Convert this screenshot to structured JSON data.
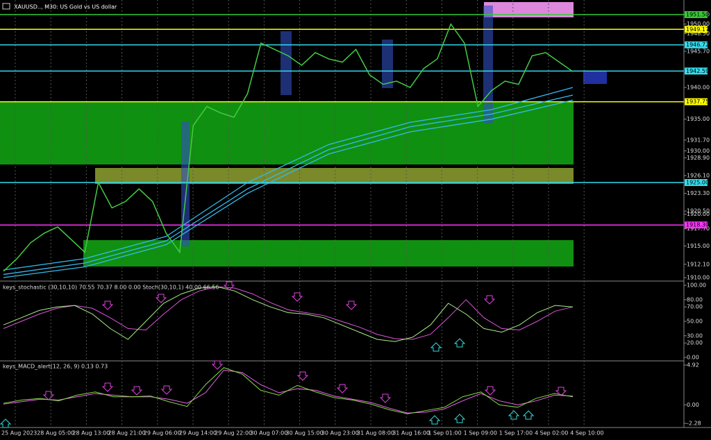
{
  "header": {
    "title": "XAUUSD.., M30:  US Gold vs US dollar"
  },
  "price_axis": {
    "ticks": [
      {
        "value": 1951.5,
        "label": "1951.50"
      },
      {
        "value": 1950.0,
        "label": "1950.00"
      },
      {
        "value": 1948.5,
        "label": "1948.50"
      },
      {
        "value": 1945.7,
        "label": "1945.70"
      },
      {
        "value": 1940.0,
        "label": "1940.00"
      },
      {
        "value": 1935.0,
        "label": "1935.00"
      },
      {
        "value": 1931.7,
        "label": "1931.70"
      },
      {
        "value": 1930.0,
        "label": "1930.00"
      },
      {
        "value": 1928.9,
        "label": "1928.90"
      },
      {
        "value": 1926.1,
        "label": "1926.10"
      },
      {
        "value": 1923.3,
        "label": "1923.30"
      },
      {
        "value": 1920.5,
        "label": "1920.50"
      },
      {
        "value": 1920.0,
        "label": "1920.00"
      },
      {
        "value": 1917.7,
        "label": "1917.70"
      },
      {
        "value": 1915.0,
        "label": "1915.00"
      },
      {
        "value": 1912.1,
        "label": "1912.10"
      },
      {
        "value": 1910.0,
        "label": "1910.00"
      }
    ]
  },
  "levels": [
    {
      "value": 1951.5,
      "label": "1951.50",
      "color": "#33cc33"
    },
    {
      "value": 1949.17,
      "label": "1949.17",
      "color": "#ffff00"
    },
    {
      "value": 1946.72,
      "label": "1946.72",
      "color": "#33ddee"
    },
    {
      "value": 1942.59,
      "label": "1942.59",
      "color": "#33ddee"
    },
    {
      "value": 1937.75,
      "label": "1937.75",
      "color": "#ffff00"
    },
    {
      "value": 1925.0,
      "label": "1925.00",
      "color": "#33ddee"
    },
    {
      "value": 1918.3,
      "label": "1918.30",
      "color": "#ff33ff"
    }
  ],
  "price": {
    "color": "#44cc44",
    "values": [
      1911,
      1913,
      1915.5,
      1917,
      1918,
      1916,
      1914,
      1925,
      1921,
      1922,
      1924,
      1922,
      1917,
      1914,
      1934,
      1937,
      1936,
      1935.3,
      1939,
      1947,
      1946,
      1945,
      1943.5,
      1945.5,
      1944.5,
      1944,
      1946,
      1942,
      1940.5,
      1941,
      1940,
      1943,
      1944.5,
      1950,
      1947,
      1937,
      1939.5,
      1941,
      1940.5,
      1945,
      1945.5,
      1944,
      1942.5
    ]
  },
  "moving_averages": [
    {
      "color": "#33bbee",
      "values": [
        1911.2,
        1913,
        1916.5,
        1925,
        1931,
        1934.5,
        1936.5,
        1940
      ]
    },
    {
      "color": "#33bbee",
      "values": [
        1910.5,
        1912.3,
        1915.8,
        1924,
        1930.2,
        1933.8,
        1935.8,
        1938.8
      ]
    },
    {
      "color": "#33bbee",
      "values": [
        1910,
        1911.7,
        1915.2,
        1923.3,
        1929.5,
        1933,
        1935,
        1938
      ]
    }
  ],
  "stochastic": {
    "label": "keys_stochastic (30,10,10) 70.55 70.37 8.00 0.00 Stoch(30,10,1) 40.00 66.56",
    "ticks": [
      {
        "value": 100,
        "label": "100.00"
      },
      {
        "value": 80,
        "label": "80.00"
      },
      {
        "value": 70,
        "label": "70.00"
      },
      {
        "value": 50,
        "label": "50.00"
      },
      {
        "value": 30,
        "label": "30.00"
      },
      {
        "value": 20,
        "label": "20.00"
      },
      {
        "value": 0,
        "label": "0.00"
      }
    ],
    "main": {
      "color": "#aaee88",
      "values": [
        45,
        55,
        65,
        70,
        72,
        60,
        40,
        25,
        50,
        75,
        88,
        96,
        98,
        92,
        80,
        70,
        62,
        60,
        55,
        45,
        35,
        25,
        22,
        28,
        45,
        75,
        60,
        40,
        35,
        45,
        62,
        72,
        70
      ]
    },
    "signal": {
      "color": "#dd55dd",
      "values": [
        40,
        50,
        60,
        68,
        72,
        68,
        55,
        40,
        38,
        60,
        80,
        92,
        98,
        96,
        88,
        76,
        66,
        62,
        58,
        50,
        42,
        32,
        26,
        25,
        32,
        55,
        80,
        55,
        40,
        38,
        50,
        64,
        70
      ]
    }
  },
  "macd": {
    "label": "keys_MACD_alert(12, 26, 9) 0.13 0.73",
    "ticks": [
      {
        "value": 4.92,
        "label": "4.92"
      },
      {
        "value": 0,
        "label": "0.00"
      },
      {
        "value": -2.28,
        "label": "-2.28"
      }
    ],
    "main": {
      "color": "#88dd44",
      "values": [
        0.2,
        0.6,
        0.8,
        0.5,
        1.2,
        1.6,
        1.0,
        1.0,
        1.1,
        0.4,
        -0.2,
        2.5,
        4.6,
        3.8,
        1.8,
        1.2,
        2.4,
        1.6,
        0.9,
        0.6,
        0.1,
        -0.6,
        -1.1,
        -0.7,
        -0.3,
        1.0,
        1.6,
        0.0,
        -0.3,
        0.8,
        1.4,
        1.0
      ]
    },
    "signal": {
      "color": "#ee66ee",
      "values": [
        0.1,
        0.4,
        0.7,
        0.6,
        1.0,
        1.4,
        1.2,
        1.0,
        1.0,
        0.7,
        0.2,
        1.5,
        4.3,
        4.0,
        2.5,
        1.5,
        2.0,
        1.8,
        1.1,
        0.7,
        0.3,
        -0.4,
        -1.0,
        -0.9,
        -0.5,
        0.5,
        1.4,
        0.5,
        0.0,
        0.5,
        1.2,
        1.1
      ]
    }
  },
  "time_axis": {
    "labels": [
      "25 Aug 2023",
      "28 Aug 05:00",
      "28 Aug 13:00",
      "28 Aug 21:00",
      "29 Aug 06:00",
      "29 Aug 14:00",
      "29 Aug 22:00",
      "30 Aug 07:00",
      "30 Aug 15:00",
      "30 Aug 23:00",
      "31 Aug 08:00",
      "31 Aug 16:00",
      "1 Sep 01:00",
      "1 Sep 09:00",
      "1 Sep 17:00",
      "4 Sep 02:00",
      "4 Sep 10:00"
    ]
  }
}
